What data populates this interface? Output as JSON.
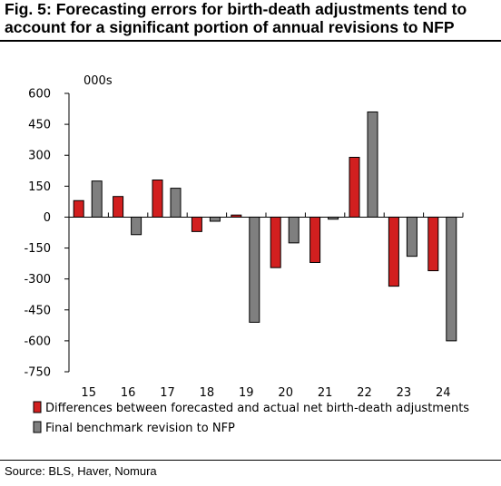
{
  "title": "Fig. 5: Forecasting errors for birth-death adjustments tend to account for a significant portion of annual revisions to NFP",
  "source": "Source: BLS, Haver, Nomura",
  "colors": {
    "series1": "#d21f1f",
    "series2": "#7f7f7f"
  },
  "chart_data": {
    "type": "bar",
    "title": "",
    "ylabel": "000s",
    "xlabel": "",
    "categories": [
      "15",
      "16",
      "17",
      "18",
      "19",
      "20",
      "21",
      "22",
      "23",
      "24"
    ],
    "series": [
      {
        "name": "Differences between forecasted and actual net birth-death adjustments",
        "values": [
          80,
          100,
          180,
          -70,
          10,
          -245,
          -220,
          290,
          -335,
          -260
        ]
      },
      {
        "name": "Final benchmark revision to NFP",
        "values": [
          175,
          -85,
          140,
          -20,
          -510,
          -125,
          -10,
          510,
          -190,
          -600
        ]
      }
    ],
    "ylim": [
      -750,
      600
    ],
    "yticks": [
      600,
      450,
      300,
      150,
      0,
      -150,
      -300,
      -450,
      -600,
      -750
    ],
    "grid": false,
    "legend": "bottom-left"
  }
}
